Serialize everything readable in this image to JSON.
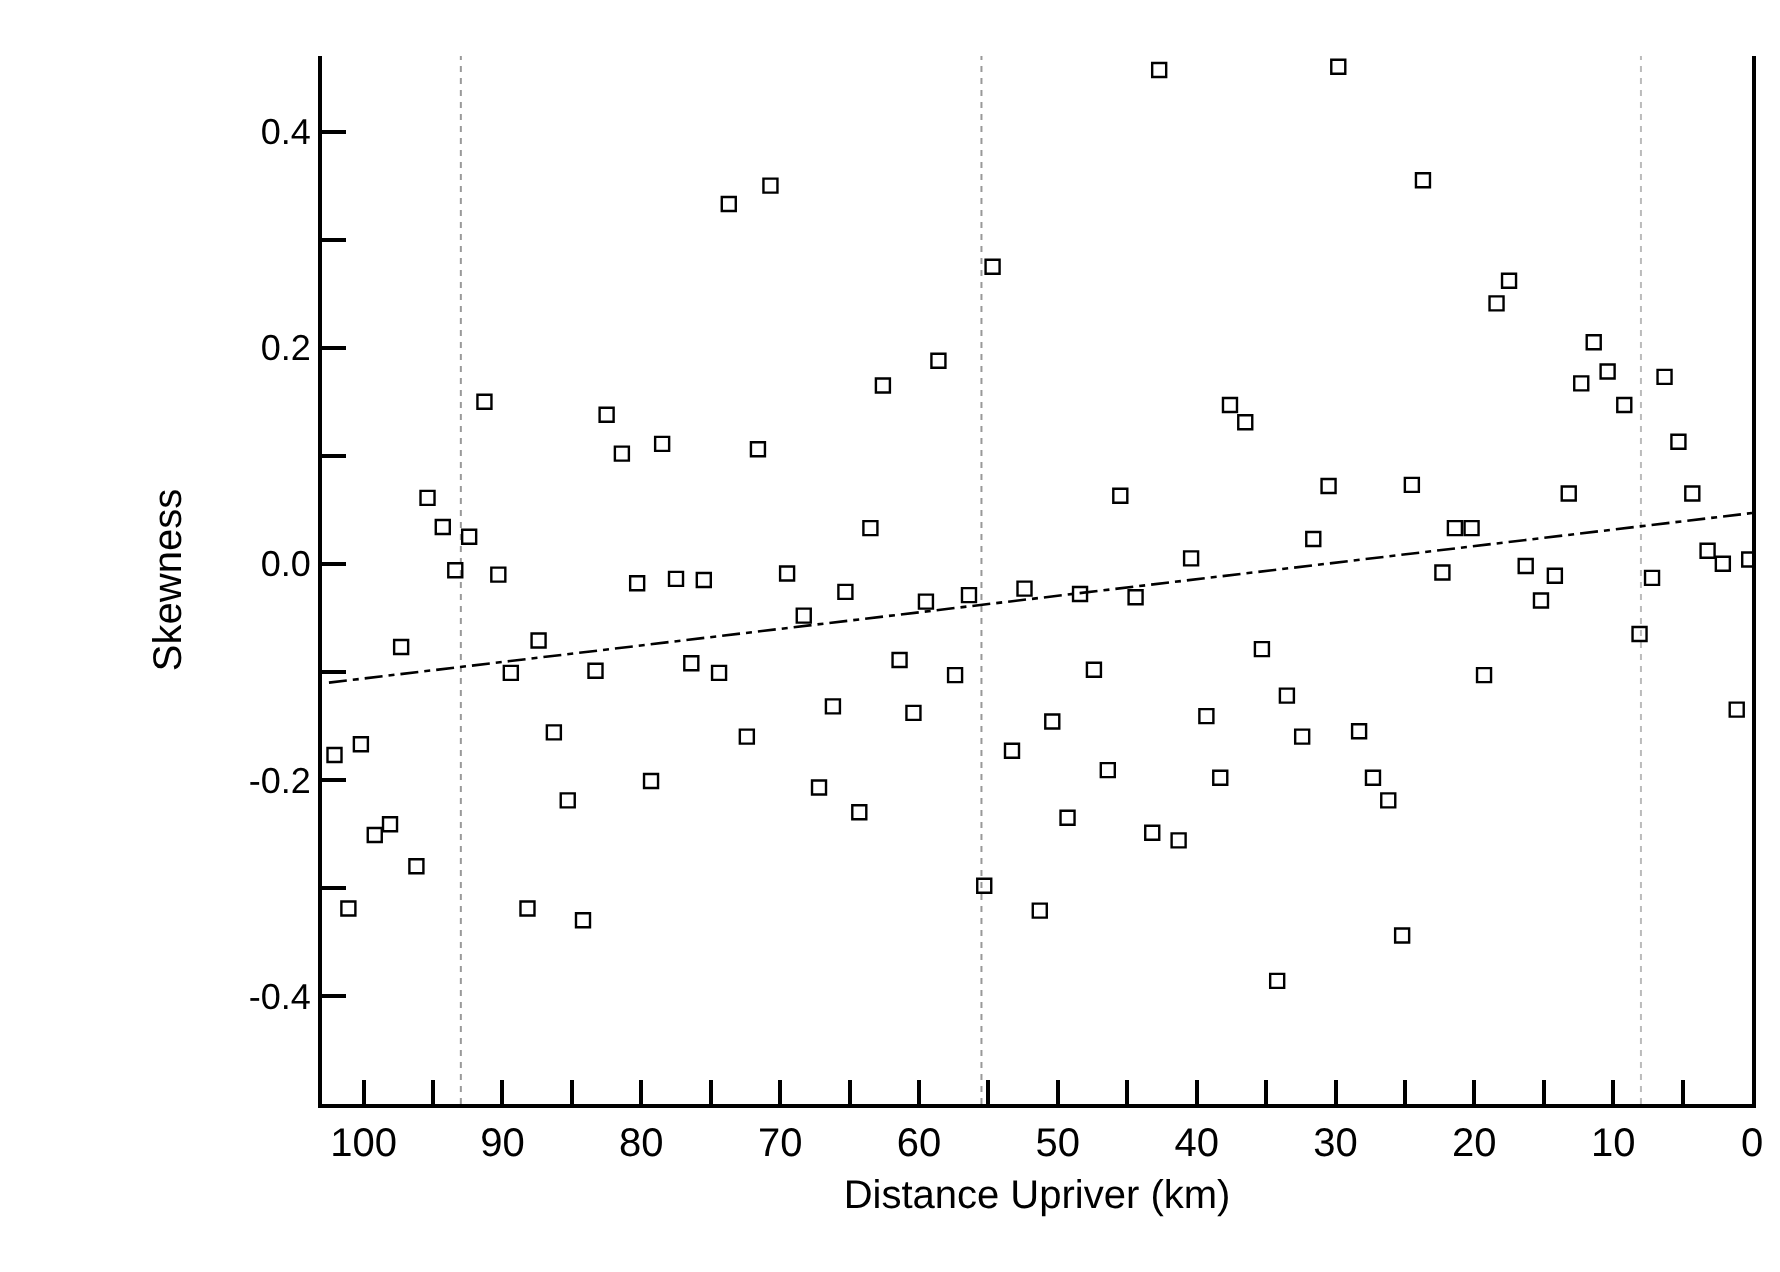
{
  "chart_data": {
    "type": "scatter",
    "xlabel": "Distance Upriver (km)",
    "ylabel": "Skewness",
    "xlim": [
      103,
      0
    ],
    "ylim": [
      -0.5,
      0.47
    ],
    "xticks": [
      100,
      {
        "value": 95,
        "label": null
      },
      90,
      {
        "value": 85,
        "label": null
      },
      80,
      {
        "value": 75,
        "label": null
      },
      70,
      {
        "value": 65,
        "label": null
      },
      60,
      {
        "value": 55,
        "label": null
      },
      50,
      {
        "value": 45,
        "label": null
      },
      40,
      {
        "value": 35,
        "label": null
      },
      30,
      {
        "value": 25,
        "label": null
      },
      20,
      {
        "value": 15,
        "label": null
      },
      10,
      {
        "value": 5,
        "label": null
      },
      0
    ],
    "yticks": [
      {
        "value": -0.4,
        "label": "-0.4"
      },
      {
        "value": -0.3,
        "label": null
      },
      {
        "value": -0.2,
        "label": "-0.2"
      },
      {
        "value": -0.1,
        "label": null
      },
      {
        "value": 0,
        "label": "0.0"
      },
      {
        "value": 0.1,
        "label": null
      },
      {
        "value": 0.2,
        "label": "0.2"
      },
      {
        "value": 0.3,
        "label": null
      },
      {
        "value": 0.4,
        "label": "0.4"
      }
    ],
    "grid": false,
    "series": [
      {
        "color": "#000000",
        "marker": "square",
        "x": [
          91.3,
          73.7,
          70.7,
          95.4,
          94.3,
          92.4,
          93.4,
          90.3,
          82.5,
          81.4,
          78.5,
          71.6,
          80.3,
          77.5,
          75.5,
          69.5,
          102.1,
          100.2,
          101.1,
          99.2,
          98.1,
          96.2,
          97.3,
          89.4,
          87.4,
          86.3,
          85.3,
          88.2,
          84.2,
          83.3,
          79.3,
          76.4,
          74.4,
          72.4,
          68.3,
          65.3,
          61.4,
          57.4,
          66.2,
          60.4,
          67.2,
          64.3,
          59.5,
          56.4,
          52.4,
          48.4,
          44.4,
          40.4,
          55.3,
          51.3,
          53.3,
          50.4,
          47.4,
          46.4,
          49.3,
          43.2,
          41.3,
          39.3,
          38.3,
          35.3,
          33.5,
          32.4,
          34.2,
          42.7,
          54.7,
          58.6,
          62.6,
          63.5,
          45.5,
          37.6,
          36.5,
          31.6,
          29.8,
          23.7,
          17.5,
          18.4,
          11.4,
          10.4,
          12.3,
          9.2,
          6.3,
          5.3,
          30.5,
          24.5,
          13.2,
          4.3,
          21.4,
          20.2,
          22.3,
          16.3,
          14.2,
          7.2,
          3.2,
          2.1,
          0.2,
          15.2,
          8.1,
          19.3,
          1.1,
          28.3,
          27.3,
          26.2,
          25.2
        ],
        "values": [
          0.15,
          0.333,
          0.35,
          0.061,
          0.034,
          0.025,
          -0.006,
          -0.01,
          0.138,
          0.102,
          0.111,
          0.106,
          -0.018,
          -0.014,
          -0.015,
          -0.009,
          -0.177,
          -0.167,
          -0.319,
          -0.251,
          -0.241,
          -0.28,
          -0.077,
          -0.101,
          -0.071,
          -0.156,
          -0.219,
          -0.319,
          -0.33,
          -0.099,
          -0.201,
          -0.092,
          -0.101,
          -0.16,
          -0.048,
          -0.026,
          -0.089,
          -0.103,
          -0.132,
          -0.138,
          -0.207,
          -0.23,
          -0.035,
          -0.029,
          -0.023,
          -0.028,
          -0.031,
          0.005,
          -0.298,
          -0.321,
          -0.173,
          -0.146,
          -0.098,
          -0.191,
          -0.235,
          -0.249,
          -0.256,
          -0.141,
          -0.198,
          -0.079,
          -0.122,
          -0.16,
          -0.386,
          0.457,
          0.275,
          0.188,
          0.165,
          0.033,
          0.063,
          0.147,
          0.131,
          0.023,
          0.46,
          0.355,
          0.262,
          0.241,
          0.205,
          0.178,
          0.167,
          0.147,
          0.173,
          0.113,
          0.072,
          0.073,
          0.065,
          0.065,
          0.033,
          0.033,
          -0.008,
          -0.002,
          -0.011,
          -0.013,
          0.012,
          0.0,
          0.004,
          -0.034,
          -0.065,
          -0.103,
          -0.135,
          -0.155,
          -0.198,
          -0.219,
          -0.344
        ]
      },
      {
        "type": "line",
        "color": "#000000",
        "line_style": "dashdot",
        "marker": "none",
        "x": [
          102.5,
          0
        ],
        "values": [
          -0.11,
          0.047
        ]
      }
    ],
    "ref_lines": [
      {
        "axis": "x",
        "value": 93,
        "color": "#999999",
        "line_style": "dotted"
      },
      {
        "axis": "x",
        "value": 55.5,
        "color": "#999999",
        "line_style": "dotted"
      },
      {
        "axis": "x",
        "value": 8,
        "color": "#bbbbbb",
        "line_style": "dotted"
      }
    ]
  }
}
